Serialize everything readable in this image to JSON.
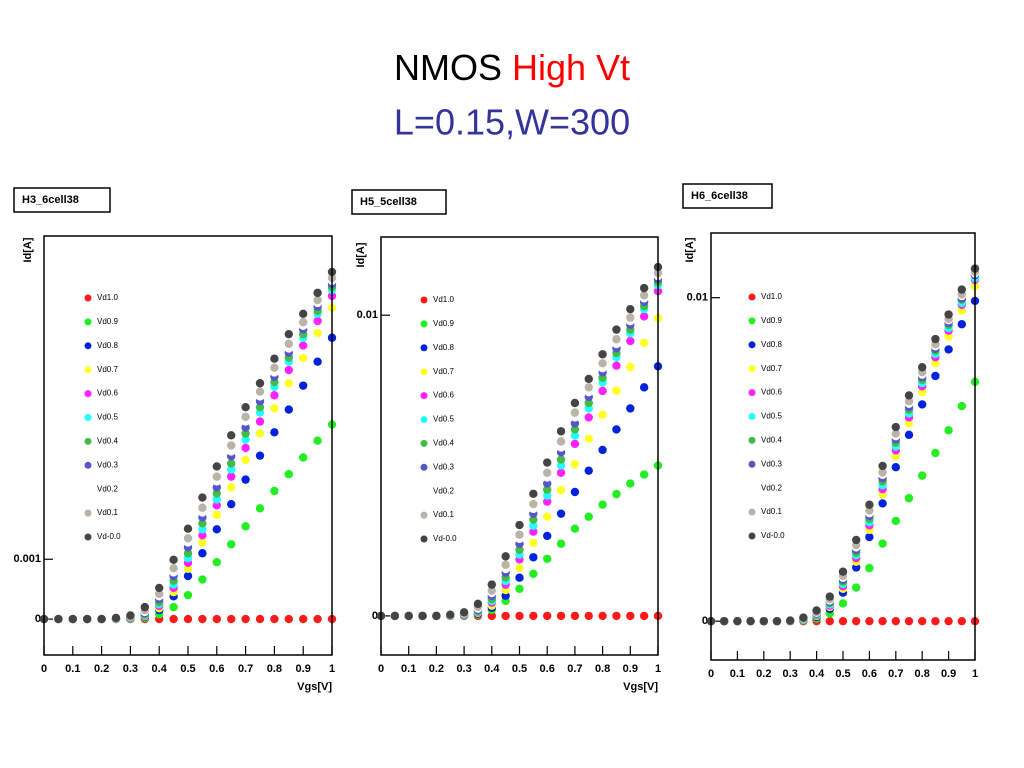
{
  "slide": {
    "title": [
      "NMOS",
      "High Vt"
    ],
    "subtitle": "L=0.15,W=300"
  },
  "chart_data": [
    {
      "type": "scatter",
      "title": "H3_6cell38",
      "ylabel": "Id[A]",
      "xlabel": "Vgs[V]",
      "xlim": [
        0,
        1
      ],
      "xticks": [
        0,
        0.1,
        0.2,
        0.3,
        0.4,
        0.5,
        0.6,
        0.7,
        0.8,
        0.9,
        1
      ],
      "ylim": [
        -0.0006,
        0.0064
      ],
      "yticks": [
        0,
        0.001
      ],
      "x": [
        0,
        0.05,
        0.1,
        0.15,
        0.2,
        0.25,
        0.3,
        0.35,
        0.4,
        0.45,
        0.5,
        0.55,
        0.6,
        0.65,
        0.7,
        0.75,
        0.8,
        0.85,
        0.9,
        0.95,
        1
      ],
      "series": [
        {
          "name": "Vd1.0",
          "color": "#ff1a1a",
          "values": [
            0,
            0,
            0,
            0,
            0,
            0,
            0,
            0,
            0,
            0,
            0,
            0,
            0,
            0,
            0,
            0,
            0,
            0,
            0,
            0,
            0
          ]
        },
        {
          "name": "Vd0.9",
          "color": "#22ee22",
          "values": [
            0,
            0,
            0,
            0,
            0,
            0,
            0,
            2e-05,
            8e-05,
            0.0002,
            0.0004,
            0.00066,
            0.00095,
            0.00125,
            0.00155,
            0.00185,
            0.00214,
            0.00242,
            0.0027,
            0.00298,
            0.00325
          ]
        },
        {
          "name": "Vd0.8",
          "color": "#0022dd",
          "values": [
            0,
            0,
            0,
            0,
            0,
            0,
            1e-05,
            4e-05,
            0.00015,
            0.00038,
            0.00072,
            0.0011,
            0.0015,
            0.00192,
            0.00233,
            0.00273,
            0.00312,
            0.0035,
            0.0039,
            0.0043,
            0.0047
          ]
        },
        {
          "name": "Vd0.7",
          "color": "#ffff22",
          "values": [
            0,
            0,
            0,
            0,
            0,
            0,
            1e-05,
            5e-05,
            0.00018,
            0.00045,
            0.00084,
            0.00128,
            0.00174,
            0.0022,
            0.00266,
            0.0031,
            0.00352,
            0.00394,
            0.00436,
            0.00478,
            0.0052
          ]
        },
        {
          "name": "Vd0.6",
          "color": "#ff22ff",
          "values": [
            0,
            0,
            0,
            0,
            0,
            0,
            1e-05,
            6e-05,
            0.00022,
            0.00052,
            0.00094,
            0.0014,
            0.0019,
            0.00238,
            0.00286,
            0.0033,
            0.00374,
            0.00416,
            0.00457,
            0.00498,
            0.0054
          ]
        },
        {
          "name": "Vd0.5",
          "color": "#22ffff",
          "values": [
            0,
            0,
            0,
            0,
            0,
            0,
            2e-05,
            7e-05,
            0.00025,
            0.00058,
            0.00102,
            0.0015,
            0.002,
            0.0025,
            0.003,
            0.00345,
            0.00388,
            0.0043,
            0.0047,
            0.0051,
            0.0055
          ]
        },
        {
          "name": "Vd0.4",
          "color": "#44bb44",
          "values": [
            0,
            0,
            0,
            0,
            0,
            0,
            2e-05,
            8e-05,
            0.00028,
            0.00064,
            0.0011,
            0.0016,
            0.0021,
            0.0026,
            0.0031,
            0.00354,
            0.00396,
            0.00437,
            0.00476,
            0.00515,
            0.00555
          ]
        },
        {
          "name": "Vd0.3",
          "color": "#5555cc",
          "values": [
            0,
            0,
            0,
            0,
            0,
            1e-05,
            3e-05,
            0.0001,
            0.00033,
            0.00072,
            0.0012,
            0.0017,
            0.0022,
            0.00272,
            0.0032,
            0.00364,
            0.00405,
            0.00445,
            0.00484,
            0.00522,
            0.0056
          ]
        },
        {
          "name": "Vd0.2",
          "color": "#ffffff",
          "values": [
            0,
            0,
            0,
            0,
            0,
            1e-05,
            3.5e-05,
            0.00012,
            0.00038,
            0.00078,
            0.00128,
            0.00178,
            0.0023,
            0.0028,
            0.0033,
            0.00372,
            0.00412,
            0.00452,
            0.0049,
            0.00528,
            0.00565
          ]
        },
        {
          "name": "Vd0.1",
          "color": "#bbb3a8",
          "values": [
            0,
            0,
            0,
            0,
            0,
            1e-05,
            4e-05,
            0.00015,
            0.00042,
            0.00085,
            0.00135,
            0.00186,
            0.00238,
            0.0029,
            0.00338,
            0.0038,
            0.0042,
            0.0046,
            0.00496,
            0.00533,
            0.0057
          ]
        },
        {
          "name": "Vd-0.0",
          "color": "#444444",
          "values": [
            0,
            0,
            0,
            0,
            0,
            2e-05,
            6e-05,
            0.0002,
            0.00052,
            0.00099,
            0.00151,
            0.00203,
            0.00255,
            0.00307,
            0.00354,
            0.00394,
            0.00435,
            0.00476,
            0.0051,
            0.00545,
            0.0058
          ]
        }
      ]
    },
    {
      "type": "scatter",
      "title": "H5_5cell38",
      "ylabel": "Id[A]",
      "xlabel": "Vgs[V]",
      "xlim": [
        0,
        1
      ],
      "xticks": [
        0,
        0.1,
        0.2,
        0.3,
        0.4,
        0.5,
        0.6,
        0.7,
        0.8,
        0.9,
        1
      ],
      "ylim": [
        -0.0013,
        0.0126
      ],
      "yticks": [
        0,
        0.01
      ],
      "x": [
        0,
        0.05,
        0.1,
        0.15,
        0.2,
        0.25,
        0.3,
        0.35,
        0.4,
        0.45,
        0.5,
        0.55,
        0.6,
        0.65,
        0.7,
        0.75,
        0.8,
        0.85,
        0.9,
        0.95,
        1
      ],
      "series": [
        {
          "name": "Vd1.0",
          "color": "#ff1a1a",
          "values": [
            0,
            0,
            0,
            0,
            0,
            0,
            0,
            0,
            0,
            0,
            0,
            0,
            0,
            0,
            0,
            0,
            0,
            0,
            0,
            0,
            0
          ]
        },
        {
          "name": "Vd0.9",
          "color": "#22ee22",
          "values": [
            0,
            0,
            0,
            0,
            0,
            0,
            0,
            4e-05,
            0.0002,
            0.0005,
            0.0009,
            0.0014,
            0.0019,
            0.0024,
            0.0029,
            0.0033,
            0.0037,
            0.00405,
            0.0044,
            0.0047,
            0.005
          ]
        },
        {
          "name": "Vd0.8",
          "color": "#0022dd",
          "values": [
            0,
            0,
            0,
            0,
            0,
            0,
            2e-05,
            7e-05,
            0.00027,
            0.00067,
            0.00127,
            0.00195,
            0.00266,
            0.0034,
            0.00412,
            0.00483,
            0.00552,
            0.0062,
            0.0069,
            0.0076,
            0.0083
          ]
        },
        {
          "name": "Vd0.7",
          "color": "#ffff22",
          "values": [
            0,
            0,
            0,
            0,
            0,
            0,
            2e-05,
            0.0001,
            0.00034,
            0.00086,
            0.0016,
            0.00243,
            0.0033,
            0.00418,
            0.00505,
            0.00589,
            0.00669,
            0.00749,
            0.00828,
            0.00908,
            0.0099
          ]
        },
        {
          "name": "Vd0.6",
          "color": "#ff22ff",
          "values": [
            0,
            0,
            0,
            0,
            0,
            0,
            2e-05,
            0.00012,
            0.00044,
            0.00104,
            0.00188,
            0.0028,
            0.0038,
            0.00476,
            0.00572,
            0.0066,
            0.00748,
            0.00832,
            0.00914,
            0.00996,
            0.0108
          ]
        },
        {
          "name": "Vd0.5",
          "color": "#22ffff",
          "values": [
            0,
            0,
            0,
            0,
            0,
            0,
            4e-05,
            0.00014,
            0.0005,
            0.00116,
            0.00204,
            0.003,
            0.004,
            0.005,
            0.006,
            0.0069,
            0.00776,
            0.0086,
            0.0094,
            0.0102,
            0.011
          ]
        },
        {
          "name": "Vd0.4",
          "color": "#44bb44",
          "values": [
            0,
            0,
            0,
            0,
            0,
            0,
            4e-05,
            0.00016,
            0.00056,
            0.00128,
            0.0022,
            0.0032,
            0.0042,
            0.0052,
            0.0062,
            0.00708,
            0.00792,
            0.00874,
            0.00952,
            0.0103,
            0.0111
          ]
        },
        {
          "name": "Vd0.3",
          "color": "#5555cc",
          "values": [
            0,
            0,
            0,
            0,
            0,
            2e-05,
            6e-05,
            0.0002,
            0.00066,
            0.00144,
            0.0024,
            0.0034,
            0.0044,
            0.00544,
            0.0064,
            0.00728,
            0.0081,
            0.0089,
            0.00968,
            0.01044,
            0.0112
          ]
        },
        {
          "name": "Vd0.2",
          "color": "#ffffff",
          "values": [
            0,
            0,
            0,
            0,
            0,
            2e-05,
            7e-05,
            0.00024,
            0.00076,
            0.00156,
            0.00256,
            0.00356,
            0.0046,
            0.0056,
            0.0066,
            0.00744,
            0.00824,
            0.00904,
            0.0098,
            0.01056,
            0.0113
          ]
        },
        {
          "name": "Vd0.1",
          "color": "#bbb3a8",
          "values": [
            0,
            0,
            0,
            0,
            0,
            2e-05,
            8e-05,
            0.0003,
            0.00084,
            0.0017,
            0.0027,
            0.00372,
            0.00476,
            0.0058,
            0.00676,
            0.0076,
            0.0084,
            0.0092,
            0.00992,
            0.01066,
            0.0114
          ]
        },
        {
          "name": "Vd-0.0",
          "color": "#444444",
          "values": [
            0,
            0,
            0,
            0,
            0,
            4e-05,
            0.00012,
            0.0004,
            0.00104,
            0.00198,
            0.00302,
            0.00406,
            0.0051,
            0.00614,
            0.00708,
            0.00788,
            0.0087,
            0.00952,
            0.0102,
            0.0109,
            0.0116
          ]
        }
      ]
    },
    {
      "type": "scatter",
      "title": "H6_6cell38",
      "ylabel": "Id[A]",
      "xlim": [
        0,
        1
      ],
      "xticks": [
        0,
        0.1,
        0.2,
        0.3,
        0.4,
        0.5,
        0.6,
        0.7,
        0.8,
        0.9,
        1
      ],
      "ylim": [
        -0.0012,
        0.012
      ],
      "yticks": [
        0,
        0.01
      ],
      "x": [
        0,
        0.05,
        0.1,
        0.15,
        0.2,
        0.25,
        0.3,
        0.35,
        0.4,
        0.45,
        0.5,
        0.55,
        0.6,
        0.65,
        0.7,
        0.75,
        0.8,
        0.85,
        0.9,
        0.95,
        1
      ],
      "series": [
        {
          "name": "Vd1.0",
          "color": "#ff1a1a",
          "values": [
            0,
            0,
            0,
            0,
            0,
            0,
            0,
            0,
            0,
            0,
            0,
            0,
            0,
            0,
            0,
            0,
            0,
            0,
            0,
            0,
            0
          ]
        },
        {
          "name": "Vd0.9",
          "color": "#22ee22",
          "values": [
            0,
            0,
            0,
            0,
            0,
            0,
            0,
            2e-05,
            8e-05,
            0.00024,
            0.00055,
            0.00104,
            0.00164,
            0.0024,
            0.0031,
            0.0038,
            0.0045,
            0.0052,
            0.0059,
            0.00665,
            0.0074
          ]
        },
        {
          "name": "Vd0.8",
          "color": "#0022dd",
          "values": [
            0,
            0,
            0,
            0,
            0,
            0,
            1e-05,
            3e-05,
            0.00013,
            0.00038,
            0.00088,
            0.00166,
            0.0026,
            0.00364,
            0.00476,
            0.00576,
            0.0067,
            0.00758,
            0.0084,
            0.00918,
            0.0099
          ]
        },
        {
          "name": "Vd0.7",
          "color": "#ffff22",
          "values": [
            0,
            0,
            0,
            0,
            0,
            0,
            1e-05,
            4e-05,
            0.00016,
            0.00044,
            0.001,
            0.00184,
            0.00282,
            0.00392,
            0.0051,
            0.00612,
            0.00708,
            0.00798,
            0.0088,
            0.0096,
            0.01035
          ]
        },
        {
          "name": "Vd0.6",
          "color": "#ff22ff",
          "values": [
            0,
            0,
            0,
            0,
            0,
            0,
            1e-05,
            5e-05,
            0.00018,
            0.00048,
            0.00108,
            0.00195,
            0.00296,
            0.00408,
            0.00528,
            0.0063,
            0.00726,
            0.00816,
            0.00898,
            0.00978,
            0.01055
          ]
        },
        {
          "name": "Vd0.5",
          "color": "#22ffff",
          "values": [
            0,
            0,
            0,
            0,
            0,
            0,
            1e-05,
            5e-05,
            0.0002,
            0.00052,
            0.00115,
            0.00204,
            0.00306,
            0.0042,
            0.0054,
            0.00642,
            0.00736,
            0.00826,
            0.00906,
            0.00984,
            0.0106
          ]
        },
        {
          "name": "Vd0.4",
          "color": "#44bb44",
          "values": [
            0,
            0,
            0,
            0,
            0,
            0,
            1e-05,
            6e-05,
            0.00022,
            0.00056,
            0.00122,
            0.00212,
            0.00316,
            0.00432,
            0.00552,
            0.00654,
            0.00746,
            0.00836,
            0.00916,
            0.00994,
            0.0107
          ]
        },
        {
          "name": "Vd0.3",
          "color": "#5555cc",
          "values": [
            0,
            0,
            0,
            0,
            0,
            0,
            1e-05,
            7e-05,
            0.00024,
            0.0006,
            0.00128,
            0.0022,
            0.00325,
            0.00442,
            0.00562,
            0.00662,
            0.00754,
            0.00842,
            0.00922,
            0.00998,
            0.0107
          ]
        },
        {
          "name": "Vd0.2",
          "color": "#ffffff",
          "values": [
            0,
            0,
            0,
            0,
            0,
            0,
            2e-05,
            8e-05,
            0.00026,
            0.00064,
            0.00134,
            0.00228,
            0.00334,
            0.00452,
            0.00572,
            0.00672,
            0.00762,
            0.0085,
            0.0093,
            0.01005,
            0.01075
          ]
        },
        {
          "name": "Vd0.1",
          "color": "#bbb3a8",
          "values": [
            0,
            0,
            0,
            0,
            0,
            0,
            2e-05,
            9e-05,
            0.00028,
            0.00068,
            0.0014,
            0.00235,
            0.00342,
            0.0046,
            0.0058,
            0.0068,
            0.0077,
            0.00856,
            0.00935,
            0.0101,
            0.0108
          ]
        },
        {
          "name": "Vd-0.0",
          "color": "#444444",
          "values": [
            0,
            0,
            0,
            0,
            0,
            0,
            2e-05,
            0.00011,
            0.00033,
            0.00076,
            0.00153,
            0.00251,
            0.0036,
            0.0048,
            0.006,
            0.00698,
            0.00785,
            0.00872,
            0.00948,
            0.01025,
            0.0109
          ]
        }
      ]
    }
  ]
}
